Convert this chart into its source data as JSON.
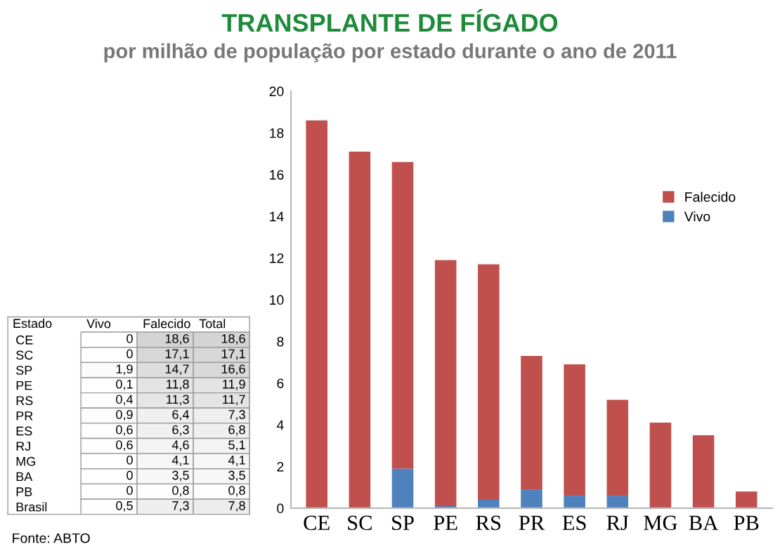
{
  "chart_data": [
    {
      "type": "bar",
      "stacked": true,
      "title": "TRANSPLANTE DE FÍGADO",
      "subtitle": "por milhão de população por estado durante o ano de 2011",
      "categories": [
        "CE",
        "SC",
        "SP",
        "PE",
        "RS",
        "PR",
        "ES",
        "RJ",
        "MG",
        "BA",
        "PB"
      ],
      "series": [
        {
          "name": "Vivo",
          "color": "#4f81bd",
          "values": [
            0,
            0,
            1.9,
            0.1,
            0.4,
            0.9,
            0.6,
            0.6,
            0,
            0,
            0
          ]
        },
        {
          "name": "Falecido",
          "color": "#c0504d",
          "values": [
            18.6,
            17.1,
            14.7,
            11.8,
            11.3,
            6.4,
            6.3,
            4.6,
            4.1,
            3.5,
            0.8
          ]
        }
      ],
      "ylim": [
        0,
        20
      ],
      "yticks": [
        0,
        2,
        4,
        6,
        8,
        10,
        12,
        14,
        16,
        18,
        20
      ],
      "grid": false,
      "legend": "right",
      "annotations": [
        "Fonte: ABTO"
      ]
    },
    {
      "type": "heatmap",
      "ylabel": "Estado",
      "categories": [
        "Vivo",
        "Falecido",
        "Total"
      ],
      "y_categories": [
        "CE",
        "SC",
        "SP",
        "PE",
        "RS",
        "PR",
        "ES",
        "RJ",
        "MG",
        "BA",
        "PB",
        "Brasil"
      ],
      "cells": [
        [
          0,
          18.6,
          18.6
        ],
        [
          0,
          17.1,
          17.1
        ],
        [
          1.9,
          14.7,
          16.6
        ],
        [
          0.1,
          11.8,
          11.9
        ],
        [
          0.4,
          11.3,
          11.7
        ],
        [
          0.9,
          6.4,
          7.3
        ],
        [
          0.6,
          6.3,
          6.8
        ],
        [
          0.6,
          4.6,
          5.1
        ],
        [
          0,
          4.1,
          4.1
        ],
        [
          0,
          3.5,
          3.5
        ],
        [
          0,
          0.8,
          0.8
        ],
        [
          0.5,
          7.3,
          7.8
        ]
      ],
      "cell_labels": [
        [
          "0",
          "18,6",
          "18,6"
        ],
        [
          "0",
          "17,1",
          "17,1"
        ],
        [
          "1,9",
          "14,7",
          "16,6"
        ],
        [
          "0,1",
          "11,8",
          "11,9"
        ],
        [
          "0,4",
          "11,3",
          "11,7"
        ],
        [
          "0,9",
          "6,4",
          "7,3"
        ],
        [
          "0,6",
          "6,3",
          "6,8"
        ],
        [
          "0,6",
          "4,6",
          "5,1"
        ],
        [
          "0",
          "4,1",
          "4,1"
        ],
        [
          "0",
          "3,5",
          "3,5"
        ],
        [
          "0",
          "0,8",
          "0,8"
        ],
        [
          "0,5",
          "7,3",
          "7,8"
        ]
      ],
      "grid": false
    }
  ]
}
